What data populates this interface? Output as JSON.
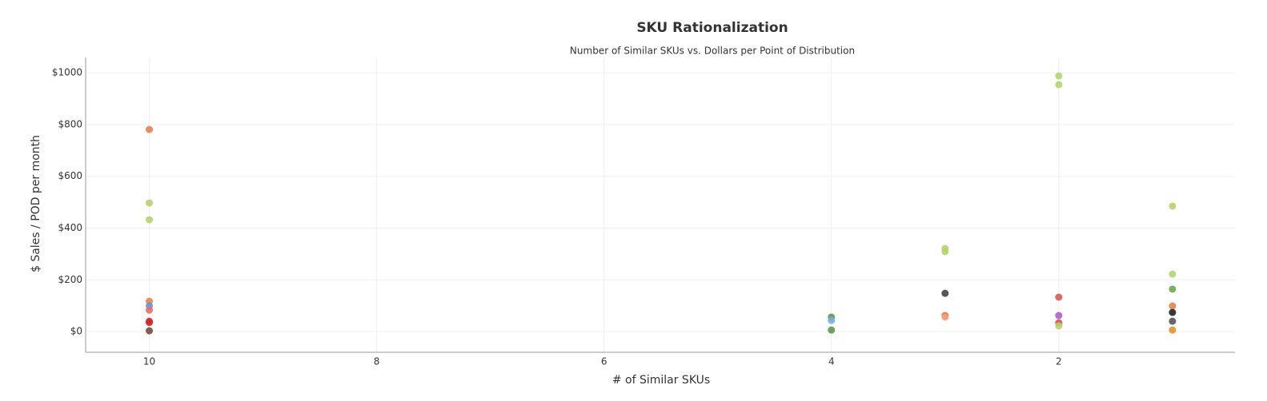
{
  "chart_data": {
    "type": "scatter",
    "title": "SKU Rationalization",
    "subtitle": "Number of Similar SKUs vs. Dollars per Point of Distribution",
    "x_label": "# of Similar SKUs",
    "y_label": "$ Sales / POD per month",
    "x": [
      10,
      10,
      10,
      10,
      10,
      10,
      10,
      10,
      10,
      4,
      4,
      4,
      3,
      3,
      3,
      3,
      3,
      2,
      2,
      2,
      2,
      2,
      2,
      1,
      1,
      1,
      1,
      1,
      1,
      1
    ],
    "values": [
      781,
      497,
      432,
      117,
      99,
      83,
      40,
      35,
      3,
      56,
      43,
      6,
      321,
      309,
      148,
      62,
      56,
      988,
      954,
      133,
      62,
      34,
      22,
      485,
      222,
      164,
      99,
      74,
      40,
      6
    ],
    "colors": [
      "#e8834a",
      "#b5d46a",
      "#b5d46a",
      "#e8834a",
      "#6a8fd8",
      "#e0706a",
      "#e03030",
      "#d02828",
      "#7a4a3a",
      "#5a9a4a",
      "#7aaee0",
      "#5a9a4a",
      "#b5d46a",
      "#b5d46a",
      "#444444",
      "#e8702a",
      "#f0a080",
      "#b5d46a",
      "#b5d46a",
      "#e05555",
      "#b05ad0",
      "#e05050",
      "#b5d46a",
      "#b5d46a",
      "#b5d46a",
      "#6aa84f",
      "#e8834a",
      "#222222",
      "#555555",
      "#e8902a"
    ],
    "xlim": [
      10.56,
      0.45
    ],
    "xticks": [
      10,
      8,
      6,
      4,
      2
    ],
    "ylim": [
      -80,
      1059
    ],
    "yticks": [
      {
        "value": 0,
        "label": "$0"
      },
      {
        "value": 200,
        "label": "$200"
      },
      {
        "value": 400,
        "label": "$400"
      },
      {
        "value": 600,
        "label": "$600"
      },
      {
        "value": 800,
        "label": "$800"
      },
      {
        "value": 1000,
        "label": "$1000"
      }
    ],
    "grid": true
  }
}
